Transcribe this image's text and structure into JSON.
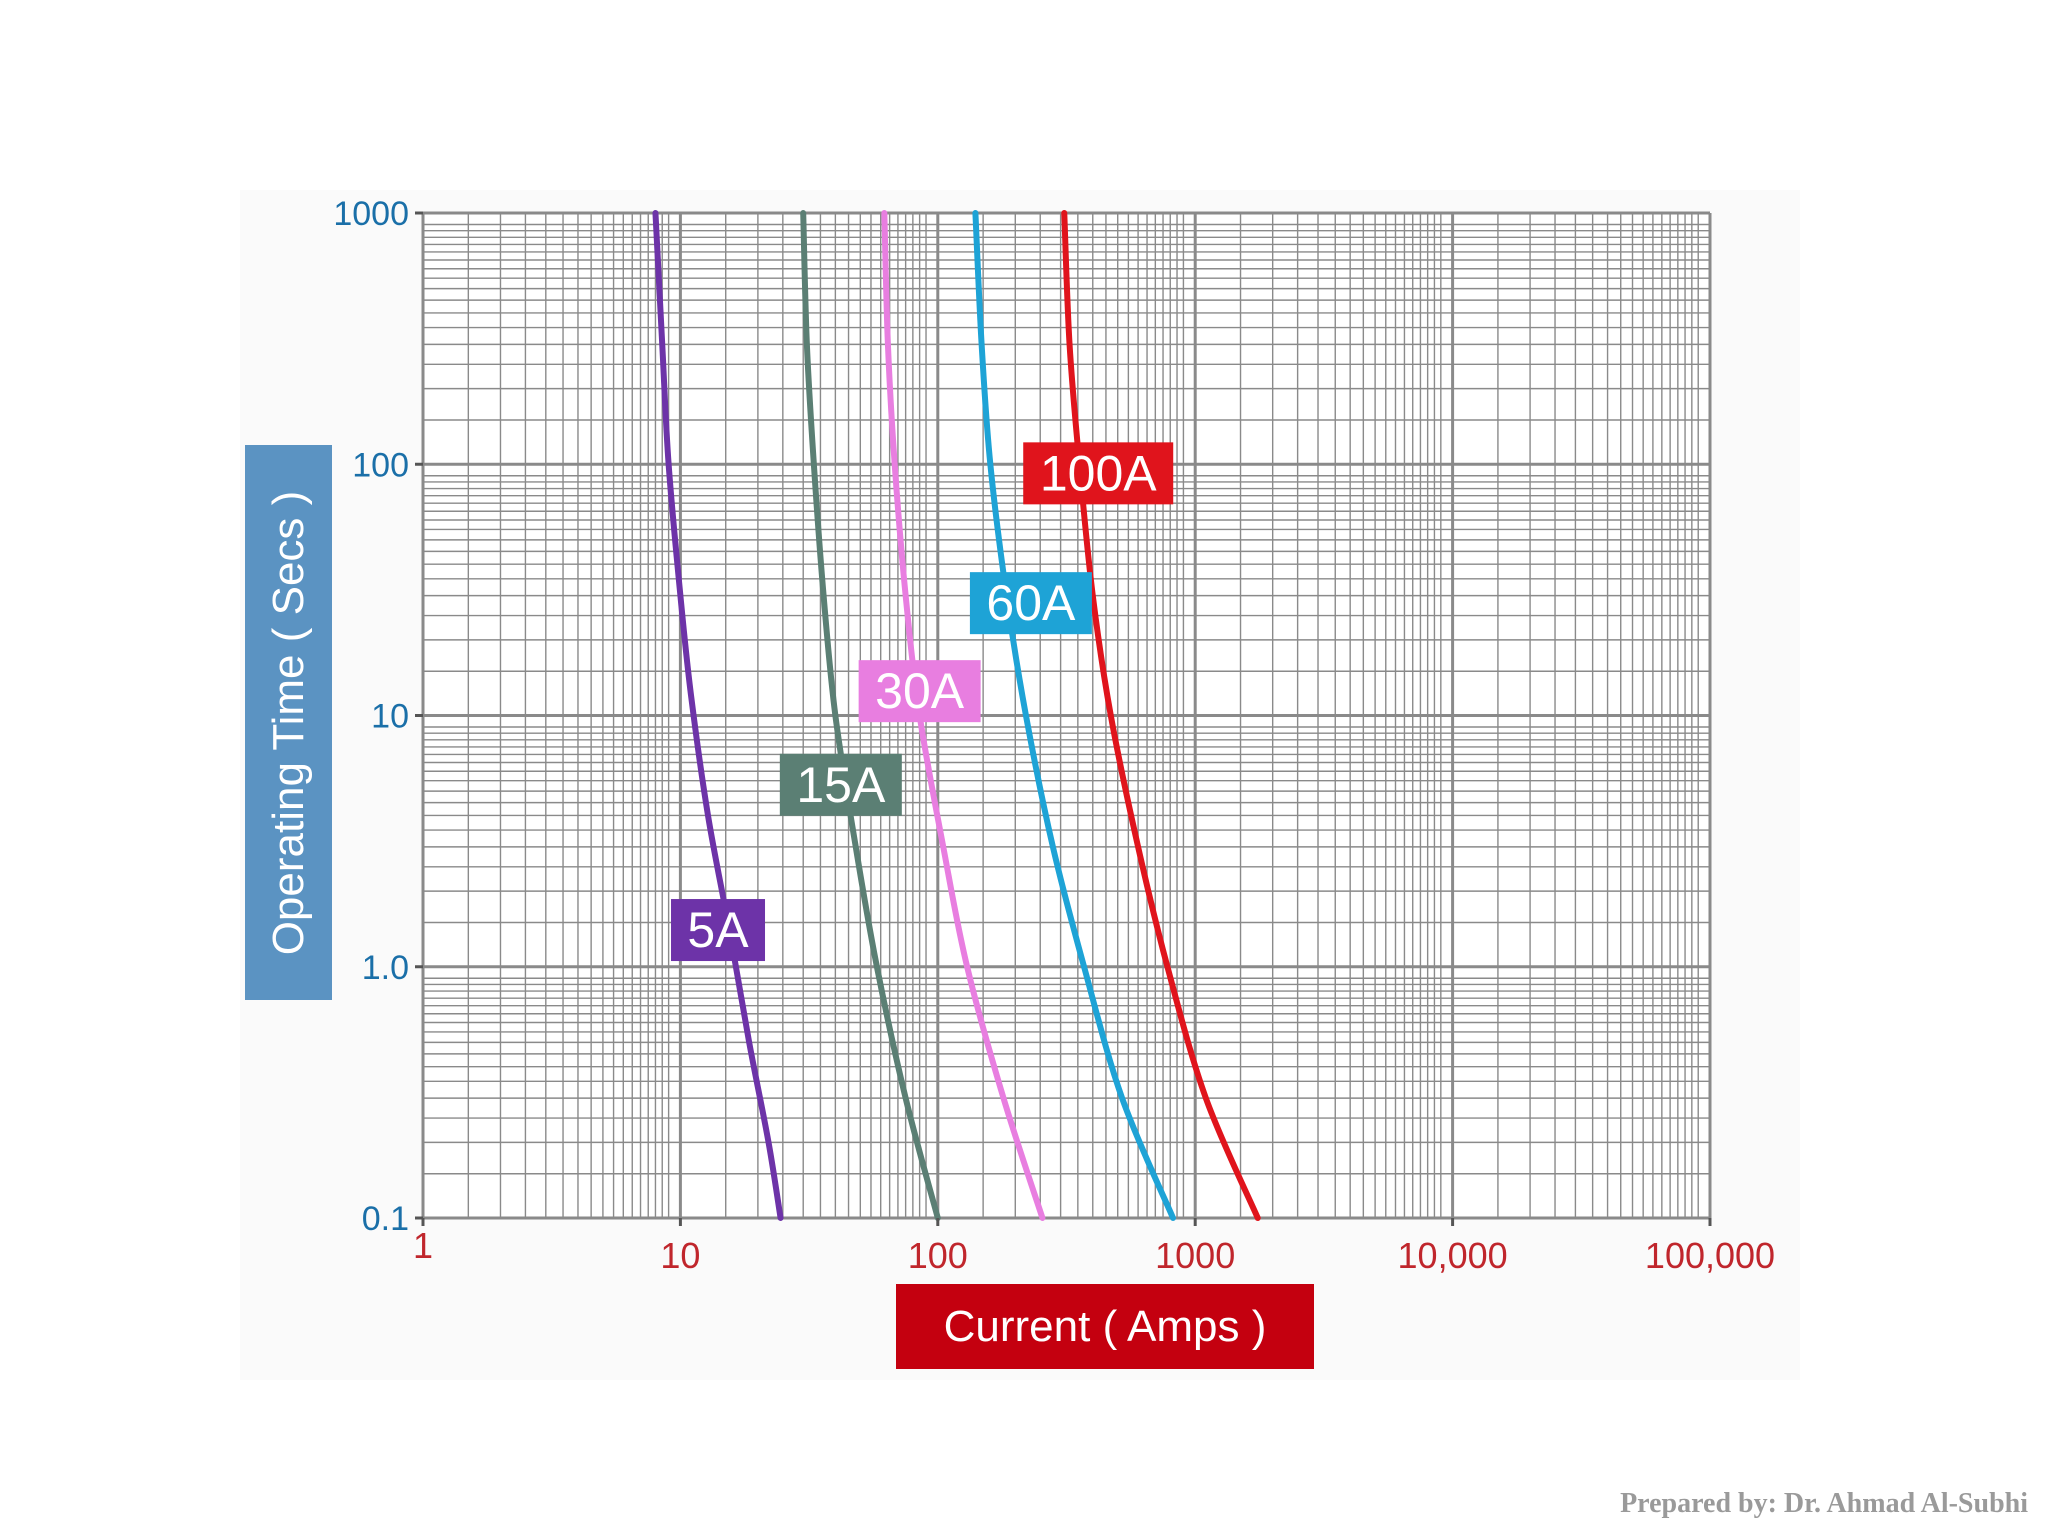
{
  "footer": {
    "credit": "Prepared by: Dr. Ahmad Al-Subhi"
  },
  "colors": {
    "grid": "#8a8a8a",
    "y_tick_text": "#1a6fa8",
    "x_tick_text": "#c0262c",
    "y_label_bg": "#5b93c2",
    "x_label_bg": "#c4000f",
    "label_text": "#ffffff"
  },
  "chart_data": {
    "type": "line",
    "title": "",
    "xlabel": "Current ( Amps )",
    "ylabel": "Operating Time ( Secs )",
    "x_scale": "log",
    "y_scale": "log",
    "xlim": [
      1,
      100000
    ],
    "ylim": [
      0.1,
      1000
    ],
    "grid": true,
    "x_ticks": [
      {
        "value": 1,
        "label": "1"
      },
      {
        "value": 10,
        "label": "10"
      },
      {
        "value": 100,
        "label": "100"
      },
      {
        "value": 1000,
        "label": "1000"
      },
      {
        "value": 10000,
        "label": "10,000"
      },
      {
        "value": 100000,
        "label": "100,000"
      }
    ],
    "y_ticks": [
      {
        "value": 1000,
        "label": "1000"
      },
      {
        "value": 100,
        "label": "100"
      },
      {
        "value": 10,
        "label": "10"
      },
      {
        "value": 1,
        "label": "1.0"
      },
      {
        "value": 0.1,
        "label": "0.1"
      }
    ],
    "series": [
      {
        "name": "5A",
        "color": "#6d33a8",
        "label_at": {
          "x": 14,
          "y": 1.4
        },
        "points": [
          [
            8.0,
            1000
          ],
          [
            8.5,
            300
          ],
          [
            9.0,
            100
          ],
          [
            10.0,
            30
          ],
          [
            11.0,
            12
          ],
          [
            12.8,
            4
          ],
          [
            15.5,
            1.4
          ],
          [
            18.5,
            0.5
          ],
          [
            22,
            0.2
          ],
          [
            24.5,
            0.1
          ]
        ]
      },
      {
        "name": "15A",
        "color": "#5b7f74",
        "label_at": {
          "x": 42,
          "y": 5.3
        },
        "points": [
          [
            30,
            1000
          ],
          [
            31,
            300
          ],
          [
            33,
            100
          ],
          [
            36,
            30
          ],
          [
            40,
            10
          ],
          [
            48,
            3
          ],
          [
            58,
            1
          ],
          [
            75,
            0.3
          ],
          [
            100,
            0.1
          ]
        ]
      },
      {
        "name": "30A",
        "color": "#e87ee0",
        "label_at": {
          "x": 85,
          "y": 12.5
        },
        "points": [
          [
            62,
            1000
          ],
          [
            64,
            300
          ],
          [
            68,
            100
          ],
          [
            75,
            30
          ],
          [
            85,
            10
          ],
          [
            105,
            3
          ],
          [
            130,
            1
          ],
          [
            180,
            0.3
          ],
          [
            255,
            0.1
          ]
        ]
      },
      {
        "name": "60A",
        "color": "#1ea3d6",
        "label_at": {
          "x": 230,
          "y": 28
        },
        "points": [
          [
            140,
            1000
          ],
          [
            148,
            300
          ],
          [
            160,
            100
          ],
          [
            185,
            30
          ],
          [
            220,
            10
          ],
          [
            280,
            3
          ],
          [
            370,
            1
          ],
          [
            520,
            0.3
          ],
          [
            820,
            0.1
          ]
        ]
      },
      {
        "name": "100A",
        "color": "#e0141c",
        "label_at": {
          "x": 420,
          "y": 92
        },
        "points": [
          [
            310,
            1000
          ],
          [
            325,
            300
          ],
          [
            355,
            100
          ],
          [
            400,
            30
          ],
          [
            470,
            10
          ],
          [
            600,
            3
          ],
          [
            780,
            1
          ],
          [
            1100,
            0.3
          ],
          [
            1750,
            0.1
          ]
        ]
      }
    ]
  }
}
